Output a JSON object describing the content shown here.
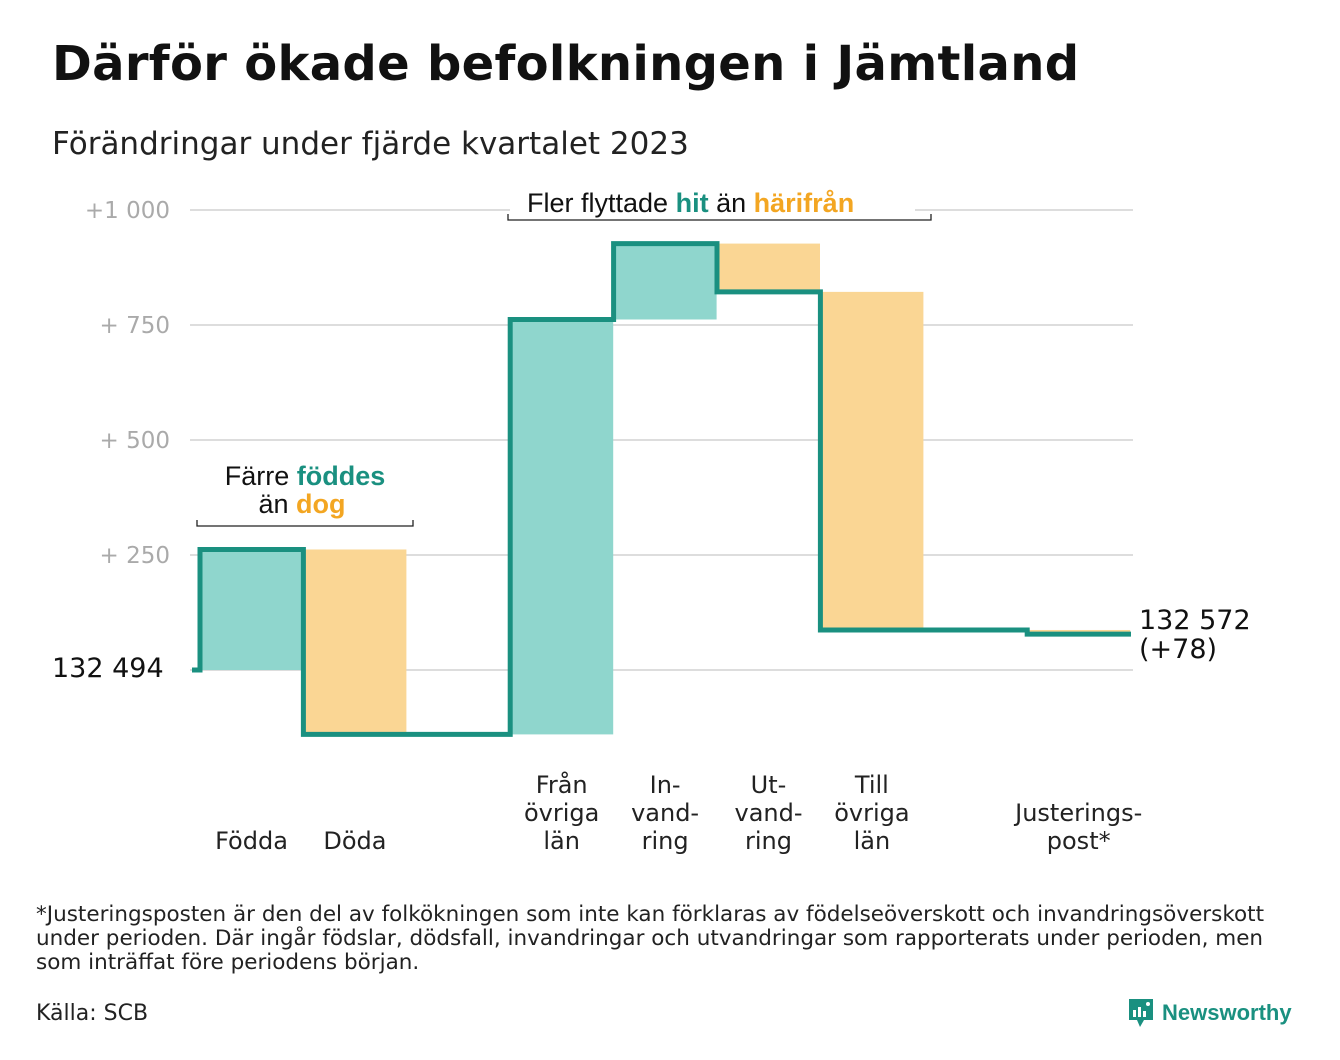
{
  "title": "Därför ökade befolkningen i Jämtland",
  "subtitle": "Förändringar under fjärde kvartalet 2023",
  "colors": {
    "teal": "#1a9080",
    "teal_fill": "#8fd6cd",
    "orange": "#f3a622",
    "orange_fill": "#fad694",
    "grid": "#dddddd"
  },
  "annotations": {
    "births_deaths": {
      "line1": "Färre",
      "line1_bold": "föddes",
      "line2": "än",
      "line2_bold": "dog"
    },
    "migration": {
      "prefix": "Fler flyttade",
      "hit": "hit",
      "middle": "än",
      "harifran": "härifrån"
    }
  },
  "chart_data": {
    "type": "waterfall",
    "title": "Därför ökade befolkningen i Jämtland",
    "subtitle": "Förändringar under fjärde kvartalet 2023",
    "start_label": "132  494",
    "start_value": 132494,
    "end_label_line1": "132 572",
    "end_label_line2": "(+78)",
    "end_value": 132572,
    "y_ticks": [
      {
        "value": 1000,
        "label": "+1   000"
      },
      {
        "value": 750,
        "label": "+  750"
      },
      {
        "value": 500,
        "label": "+  500"
      },
      {
        "value": 250,
        "label": "+  250"
      }
    ],
    "ylim": [
      -140,
      1000
    ],
    "grid": true,
    "steps": [
      {
        "label_lines": [
          "",
          "",
          "Födda"
        ],
        "change": 262,
        "kind": "in"
      },
      {
        "label_lines": [
          "",
          "",
          "Döda"
        ],
        "change": -402,
        "kind": "out"
      },
      {
        "label_lines": [],
        "change": 0,
        "kind": "gap"
      },
      {
        "label_lines": [
          "Från",
          "övriga",
          "län"
        ],
        "change": 902,
        "kind": "in"
      },
      {
        "label_lines": [
          "In-",
          "vand-",
          "ring"
        ],
        "change": 165,
        "kind": "in"
      },
      {
        "label_lines": [
          "Ut-",
          "vand-",
          "ring"
        ],
        "change": -105,
        "kind": "out"
      },
      {
        "label_lines": [
          "Till",
          "övriga",
          "län"
        ],
        "change": -735,
        "kind": "out"
      },
      {
        "label_lines": [],
        "change": 0,
        "kind": "gap"
      },
      {
        "label_lines": [
          "Justerings-",
          "post*"
        ],
        "change": -9,
        "kind": "out"
      }
    ]
  },
  "footnote": "*Justeringsposten är den del av folkökningen som inte kan förklaras av födelseöverskott och invandringsöverskott under perioden. Där ingår födslar, dödsfall, invandringar och utvandringar som rapporterats under perioden, men som inträffat före periodens början.",
  "source": "Källa: SCB",
  "logo": {
    "text": "Newsworthy",
    "icon": "newsworthy-logo-icon"
  }
}
